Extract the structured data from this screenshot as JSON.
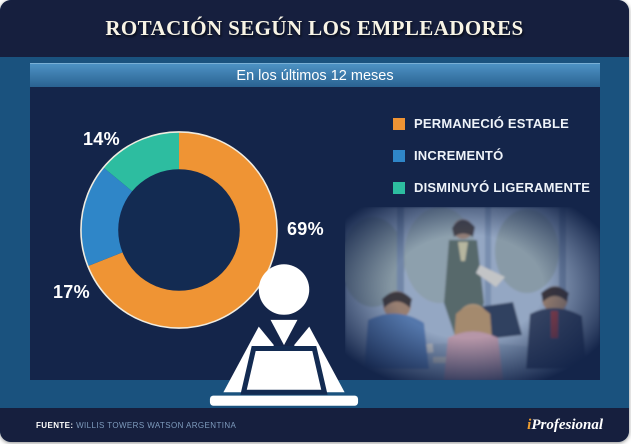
{
  "header": {
    "title": "ROTACIÓN SEGÚN LOS EMPLEADORES"
  },
  "subtitle": "En los últimos 12 meses",
  "chart_data": {
    "type": "pie",
    "donut": true,
    "title": "En los últimos 12 meses",
    "categories": [
      "PERMANECIÓ ESTABLE",
      "INCREMENTÓ",
      "DISMINUYÓ LIGERAMENTE"
    ],
    "values": [
      69,
      17,
      14
    ],
    "labels": [
      "69%",
      "17%",
      "14%"
    ],
    "colors": [
      "#ef9434",
      "#2f86c8",
      "#2dbda0"
    ],
    "start_angle_deg": 0,
    "direction": "clockwise",
    "legend_position": "right",
    "center_icon": "person-at-laptop",
    "outer_ring_color": "#f0ece0"
  },
  "legend": {
    "items": [
      {
        "label": "PERMANECIÓ ESTABLE",
        "color": "#ef9434"
      },
      {
        "label": "INCREMENTÓ",
        "color": "#2f86c8"
      },
      {
        "label": "DISMINUYÓ LIGERAMENTE",
        "color": "#2dbda0"
      }
    ]
  },
  "footer": {
    "source_label": "FUENTE:",
    "source_text": "WILLIS TOWERS WATSON ARGENTINA",
    "brand_i": "i",
    "brand_rest": "Profesional"
  },
  "palette": {
    "header_bg": "#161f3e",
    "band_bg": "#1a527e",
    "panel_bg": "#14254a",
    "subtitle_top": "#4d92c4",
    "subtitle_bottom": "#2a6291",
    "title_text": "#f8f4e6",
    "brand_accent": "#ef9e30"
  }
}
